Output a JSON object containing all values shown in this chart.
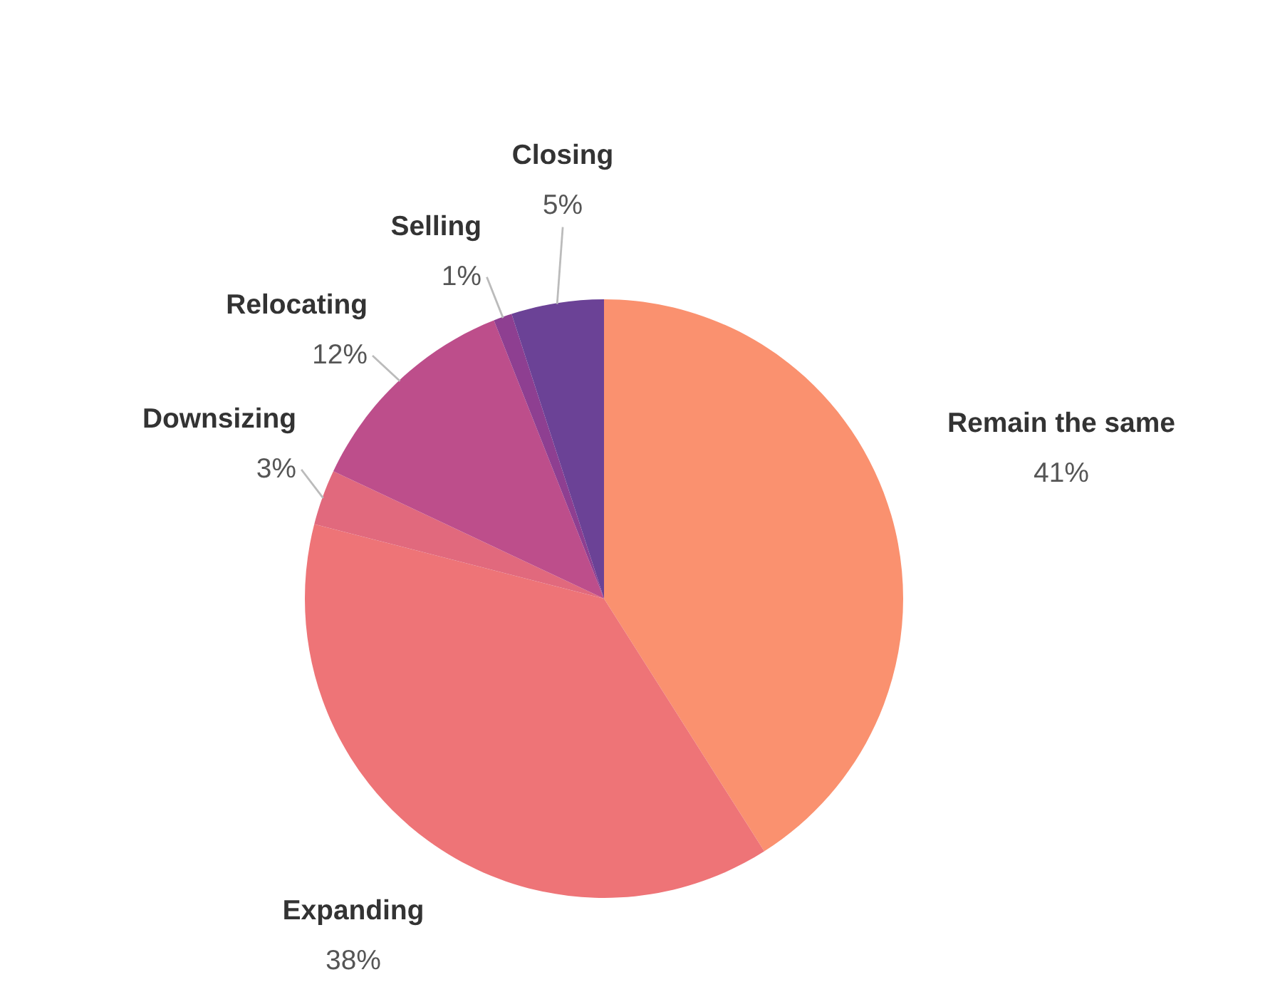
{
  "chart_data": {
    "type": "pie",
    "categories": [
      "Remain the same",
      "Expanding",
      "Downsizing",
      "Relocating",
      "Selling",
      "Closing"
    ],
    "values": [
      41,
      38,
      3,
      12,
      1,
      5
    ],
    "value_labels": [
      "41%",
      "38%",
      "3%",
      "12%",
      "1%",
      "5%"
    ],
    "colors": [
      "#fa916f",
      "#ee7477",
      "#e1697d",
      "#bd4e8b",
      "#8e3f91",
      "#6b4296"
    ],
    "legend": false
  }
}
